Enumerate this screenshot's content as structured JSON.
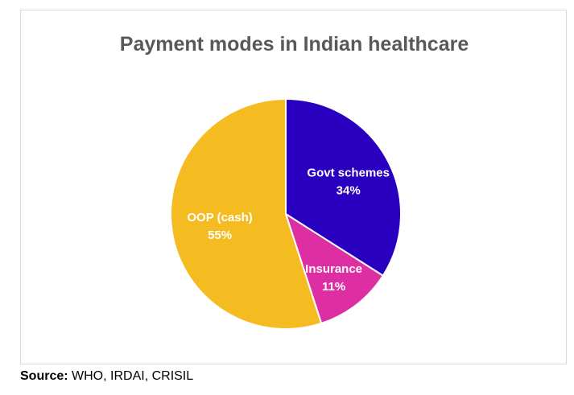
{
  "chart_data": {
    "type": "pie",
    "title": "Payment modes in Indian healthcare",
    "slices": [
      {
        "name": "Govt schemes",
        "value": 34,
        "label": "34%",
        "color": "#2A00C0"
      },
      {
        "name": "Insurance",
        "value": 11,
        "label": "11%",
        "color": "#DD2FA3"
      },
      {
        "name": "OOP (cash)",
        "value": 55,
        "label": "55%",
        "color": "#F5BC22"
      }
    ],
    "start_angle_deg": 0,
    "direction": "clockwise",
    "slice_border_color": "#ffffff"
  },
  "source": {
    "key": "Source:",
    "text": " WHO, IRDAI, CRISIL"
  }
}
